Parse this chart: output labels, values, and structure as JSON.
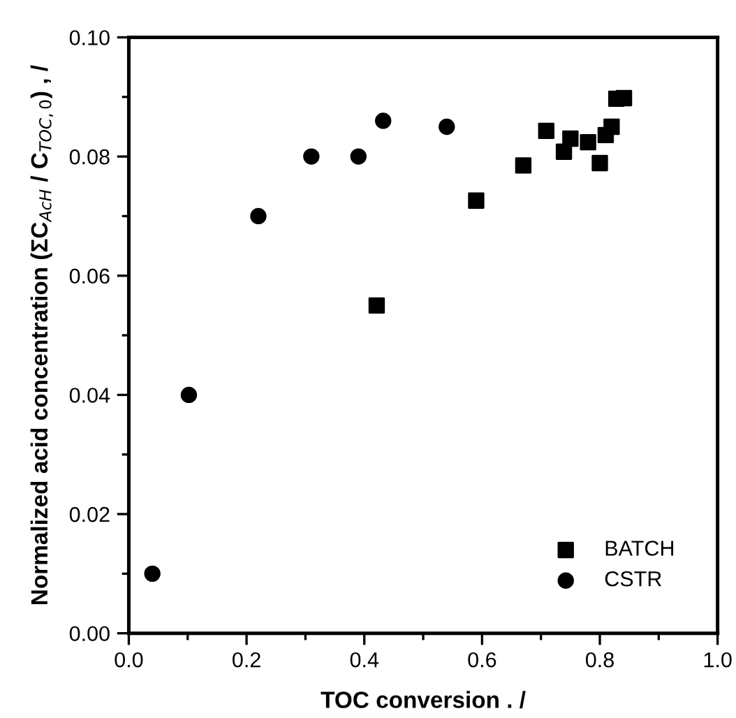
{
  "chart_data": {
    "type": "scatter",
    "xlabel": "TOC conversion . /",
    "ylabel": "Normalized acid concentration (ΣC$_{AcH}$ / C$_{TOC,0}$) , /",
    "xlim": [
      0.0,
      1.0
    ],
    "ylim": [
      0.0,
      0.1
    ],
    "xticks": [
      {
        "value": 0.0,
        "label": "0.0"
      },
      {
        "value": 0.2,
        "label": "0.2"
      },
      {
        "value": 0.4,
        "label": "0.4"
      },
      {
        "value": 0.6,
        "label": "0.6"
      },
      {
        "value": 0.8,
        "label": "0.8"
      },
      {
        "value": 1.0,
        "label": "1.0"
      }
    ],
    "yticks": [
      {
        "value": 0.0,
        "label": "0.00"
      },
      {
        "value": 0.02,
        "label": "0.02"
      },
      {
        "value": 0.04,
        "label": "0.04"
      },
      {
        "value": 0.06,
        "label": "0.06"
      },
      {
        "value": 0.08,
        "label": "0.08"
      },
      {
        "value": 0.1,
        "label": "0.10"
      }
    ],
    "grid": false,
    "legend": "bottom right",
    "series": [
      {
        "name": "BATCH",
        "color": "#000000",
        "marker": "square",
        "x": [
          0.421,
          0.59,
          0.67,
          0.709,
          0.739,
          0.75,
          0.78,
          0.8,
          0.81,
          0.82,
          0.828,
          0.841
        ],
        "values": [
          0.055,
          0.0726,
          0.0785,
          0.0843,
          0.0808,
          0.083,
          0.0824,
          0.0789,
          0.0836,
          0.085,
          0.0897,
          0.0898
        ]
      },
      {
        "name": "CSTR",
        "color": "#000000",
        "marker": "circle",
        "x": [
          0.04,
          0.102,
          0.22,
          0.31,
          0.39,
          0.432,
          0.54
        ],
        "values": [
          0.01,
          0.04,
          0.07,
          0.08,
          0.08,
          0.086,
          0.085
        ]
      }
    ]
  }
}
